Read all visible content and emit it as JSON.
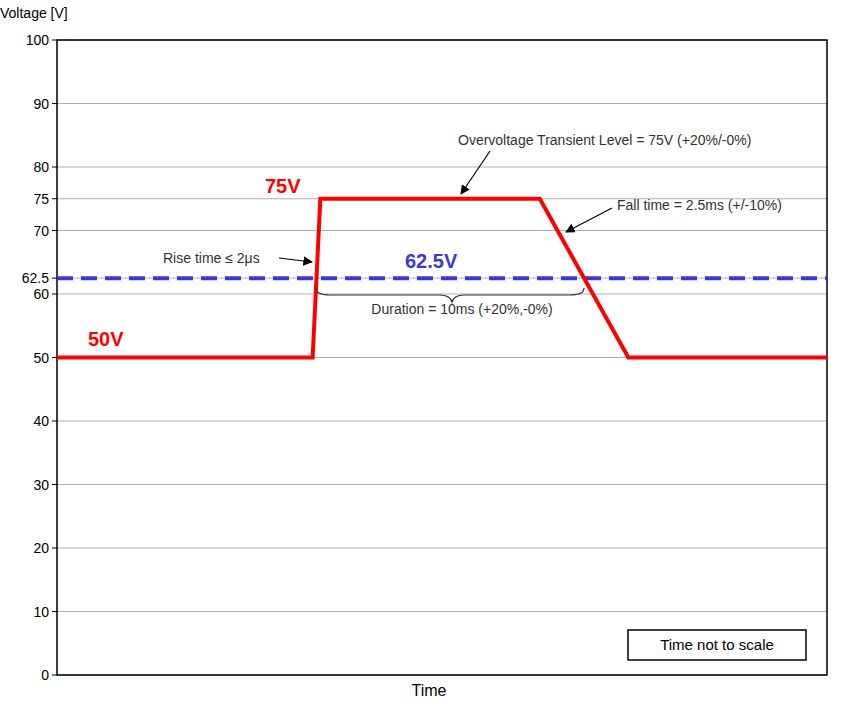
{
  "chart_data": {
    "type": "line",
    "x_label": "Time",
    "y_label": "Voltage [V]",
    "x": [
      0,
      33.2,
      34.2,
      62.7,
      74.2,
      100
    ],
    "series": [
      {
        "color": "#ff0000",
        "line_style": "solid",
        "values": [
          50,
          50,
          75,
          75,
          50,
          50
        ]
      }
    ],
    "xlim": [
      0,
      100
    ],
    "ylim": [
      0,
      100
    ],
    "yticks": [
      0,
      10,
      20,
      30,
      40,
      50,
      60,
      62.5,
      70,
      75,
      80,
      90,
      100
    ],
    "grid": true,
    "tick_labels": "y",
    "reference_lines": [
      {
        "value": 62.5,
        "label": "62.5V",
        "color": "#3a3ad0",
        "line_style": "dashed"
      }
    ],
    "annotations": [
      {
        "text": "75V",
        "color": "#ff0000"
      },
      {
        "text": "50V",
        "color": "#ff0000"
      },
      {
        "text": "Overvoltage Transient Level = 75V (+20%/-0%)",
        "color": "#333333"
      },
      {
        "text": "Fall time = 2.5ms (+/-10%)",
        "color": "#333333"
      },
      {
        "text": "Rise time ≤ 2μs",
        "color": "#333333"
      },
      {
        "text": "Duration = 10ms (+20%,-0%)",
        "color": "#333333"
      }
    ],
    "note": "Time not to scale"
  }
}
